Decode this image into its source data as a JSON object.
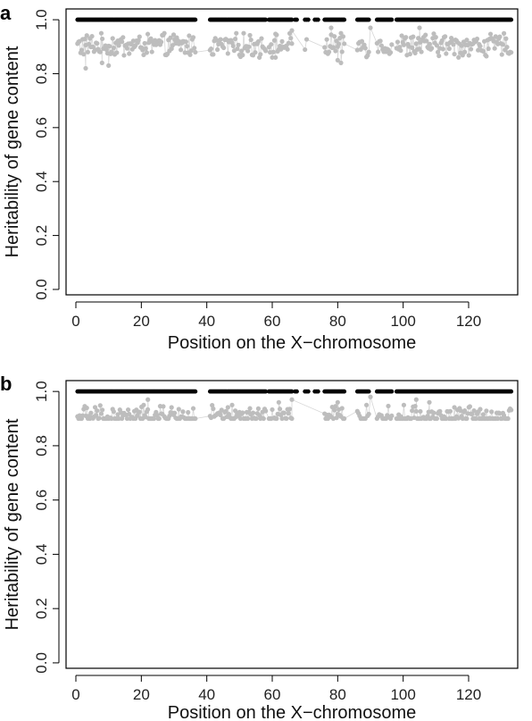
{
  "chart_data": [
    {
      "panel": "a",
      "type": "scatter",
      "xlabel": "Position on the X−chromosome",
      "ylabel": "Heritability of gene content",
      "xlim": [
        -3,
        135
      ],
      "ylim": [
        -0.02,
        1.04
      ],
      "xticks": [
        0,
        20,
        40,
        60,
        80,
        100,
        120
      ],
      "xtick_labels": [
        "0",
        "20",
        "40",
        "60",
        "80",
        "100",
        "120"
      ],
      "yticks": [
        0.0,
        0.2,
        0.4,
        0.6,
        0.8,
        1.0
      ],
      "ytick_labels": [
        "0.0",
        "0.2",
        "0.4",
        "0.6",
        "0.8",
        "1.0"
      ],
      "grid": false,
      "series": [
        {
          "color": "#000000",
          "level": 1.0,
          "x_ranges": [
            [
              0.5,
              36.5
            ],
            [
              41,
              58
            ],
            [
              59,
              66
            ],
            [
              67,
              67.5
            ],
            [
              70,
              71
            ],
            [
              73,
              74
            ],
            [
              76,
              82
            ],
            [
              86,
              89.5
            ],
            [
              92,
              96.5
            ],
            [
              98,
              133
            ]
          ]
        },
        {
          "color": "#bdbdbd",
          "level_range": [
            0.82,
            0.97
          ],
          "x_ranges": [
            [
              0.5,
              36.5
            ],
            [
              41,
              58
            ],
            [
              59,
              66
            ],
            [
              70,
              70.5
            ],
            [
              76,
              82
            ],
            [
              86,
              89.5
            ],
            [
              92,
              96.5
            ],
            [
              98,
              133
            ]
          ],
          "outliers": [
            [
              3,
              0.82
            ],
            [
              8,
              0.84
            ],
            [
              10,
              0.83
            ],
            [
              61,
              0.86
            ],
            [
              80,
              0.85
            ],
            [
              81,
              0.84
            ],
            [
              66,
              0.96
            ],
            [
              78,
              0.97
            ],
            [
              90,
              0.97
            ],
            [
              105,
              0.97
            ]
          ]
        }
      ]
    },
    {
      "panel": "b",
      "type": "scatter",
      "xlabel": "Position on the X−chromosome",
      "ylabel": "Heritability of gene content",
      "xlim": [
        -3,
        135
      ],
      "ylim": [
        -0.02,
        1.04
      ],
      "xticks": [
        0,
        20,
        40,
        60,
        80,
        100,
        120
      ],
      "xtick_labels": [
        "0",
        "20",
        "40",
        "60",
        "80",
        "100",
        "120"
      ],
      "yticks": [
        0.0,
        0.2,
        0.4,
        0.6,
        0.8,
        1.0
      ],
      "ytick_labels": [
        "0.0",
        "0.2",
        "0.4",
        "0.6",
        "0.8",
        "1.0"
      ],
      "grid": false,
      "series": [
        {
          "color": "#000000",
          "level": 1.0,
          "x_ranges": [
            [
              0.5,
              36.5
            ],
            [
              41,
              58
            ],
            [
              59,
              66
            ],
            [
              67,
              67.5
            ],
            [
              70,
              71
            ],
            [
              73,
              74
            ],
            [
              76,
              82
            ],
            [
              86,
              89.5
            ],
            [
              92,
              96.5
            ],
            [
              98,
              133
            ]
          ]
        },
        {
          "color": "#bdbdbd",
          "level_range": [
            0.86,
            0.97
          ],
          "x_ranges": [
            [
              0.5,
              36.5
            ],
            [
              41,
              58
            ],
            [
              59,
              66
            ],
            [
              76,
              82
            ],
            [
              86,
              89.5
            ],
            [
              92,
              96.5
            ],
            [
              98,
              133
            ]
          ],
          "outliers": [
            [
              22,
              0.97
            ],
            [
              62,
              0.96
            ],
            [
              66,
              0.97
            ],
            [
              80,
              0.96
            ],
            [
              90,
              0.98
            ],
            [
              104,
              0.97
            ],
            [
              108,
              0.96
            ]
          ]
        }
      ]
    }
  ]
}
